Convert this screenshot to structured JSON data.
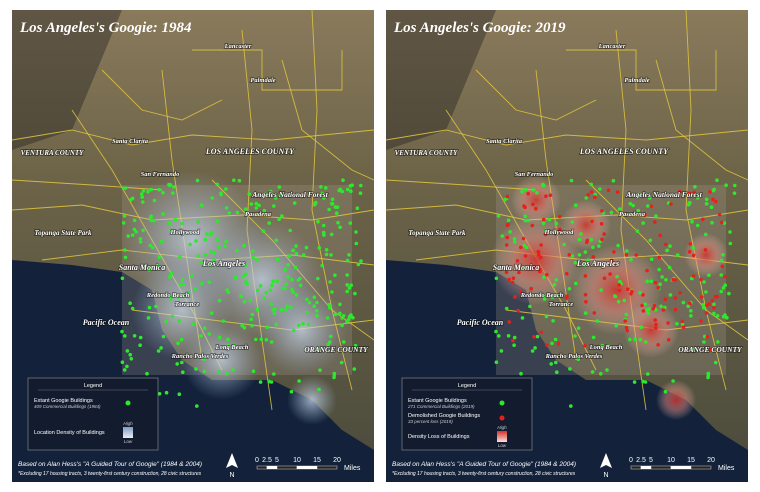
{
  "panels": [
    {
      "title": "Los Angeles's Googie: 1984",
      "legend": {
        "title": "Legend",
        "items": [
          {
            "label": "Extant Googie Buildings",
            "sublabel": "409 Commercial Buildings (1984)"
          }
        ],
        "density": {
          "label": "Location Density of Buildings",
          "high": "High",
          "low": "Low"
        }
      },
      "credit": "Based on Alan Hess's \"A Guided Tour of Googie\" (1984 & 2004)",
      "note": "*Excluding 17 housing tracts, 3 twenty-first century construction, 28 civic structures"
    },
    {
      "title": "Los Angeles's Googie: 2019",
      "legend": {
        "title": "Legend",
        "items": [
          {
            "label": "Extant Googie Buildings",
            "sublabel": "271 Commercial Buildings (2019)"
          },
          {
            "label": "Demolished Googie Buildings",
            "sublabel": "33 percent loss (2019)"
          }
        ],
        "density": {
          "label": "Density Loss of Buildings",
          "high": "High",
          "low": "Low"
        }
      },
      "credit": "Based on Alan Hess's \"A Guided Tour of Googie\" (1984 & 2004)",
      "note": "*Excluding 17 housing tracts, 3 twenty-first century construction, 28 civic structures"
    }
  ],
  "places": [
    "Lancaster",
    "Palmdale",
    "Santa Clarita",
    "VENTURA COUNTY",
    "LOS ANGELES COUNTY",
    "San Fernando",
    "Angeles National Forest",
    "Pasadena",
    "Topanga State Park",
    "Hollywood",
    "Santa Monica",
    "Los Angeles",
    "Redondo Beach",
    "Torrance",
    "Pacific Ocean",
    "Rancho Palos Verdes",
    "Long Beach",
    "ORANGE COUNTY"
  ],
  "scale": {
    "ticks": [
      "0",
      "2.5",
      "5",
      "10",
      "15",
      "20"
    ],
    "unit": "Miles"
  },
  "north": "N"
}
